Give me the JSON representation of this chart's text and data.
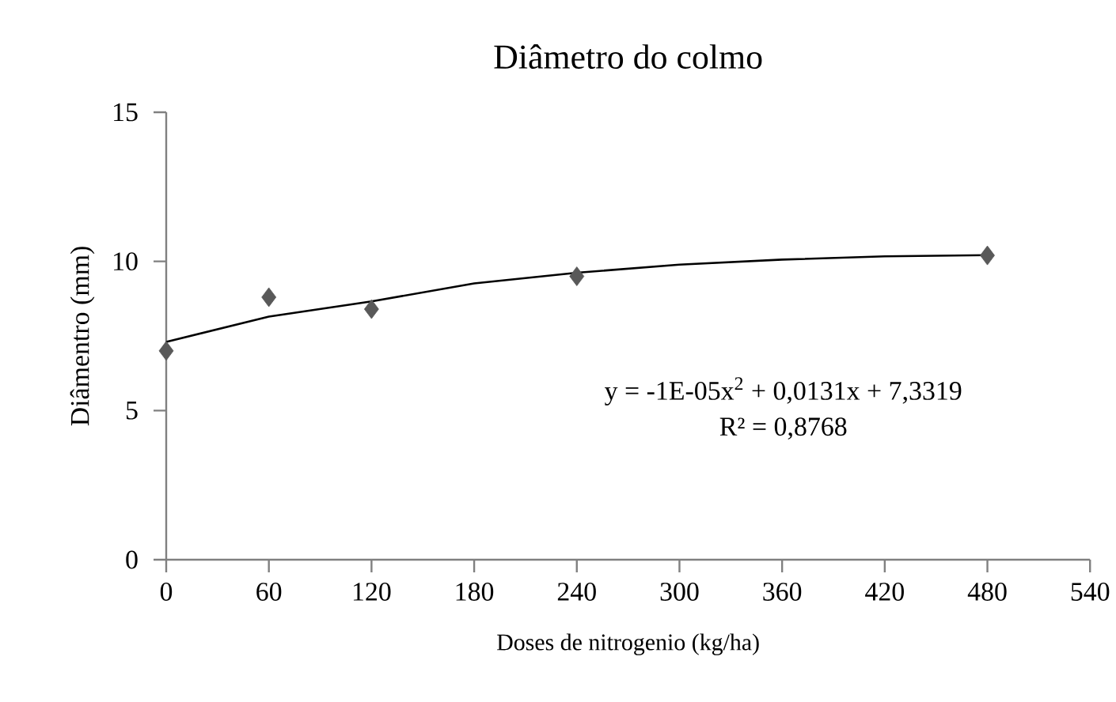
{
  "chart_data": {
    "type": "scatter",
    "title": "Diâmetro do colmo",
    "xlabel": "Doses de nitrogenio  (kg/ha)",
    "ylabel": "Diâmentro (mm)",
    "xlim": [
      0,
      540
    ],
    "xticks": [
      0,
      60,
      120,
      180,
      240,
      300,
      360,
      420,
      480,
      540
    ],
    "ylim": [
      0,
      15
    ],
    "yticks": [
      0,
      5,
      10,
      15
    ],
    "grid": false,
    "series": [
      {
        "type": "scatter",
        "marker": "diamond",
        "color": "#595959",
        "x": [
          0,
          60,
          120,
          240,
          480
        ],
        "values": [
          7.0,
          8.8,
          8.4,
          9.5,
          10.2
        ]
      },
      {
        "type": "line",
        "marker": "none",
        "line_style": "solid",
        "color": "#000000",
        "x": [
          0,
          60,
          120,
          180,
          240,
          300,
          360,
          420,
          480
        ],
        "values": [
          7.3,
          8.15,
          8.66,
          9.26,
          9.62,
          9.89,
          10.06,
          10.17,
          10.21
        ]
      }
    ],
    "annotations": [
      "y = -1E-05x$^{2}$ + 0,0131x + 7,3319",
      "R² = 0,8768"
    ]
  }
}
